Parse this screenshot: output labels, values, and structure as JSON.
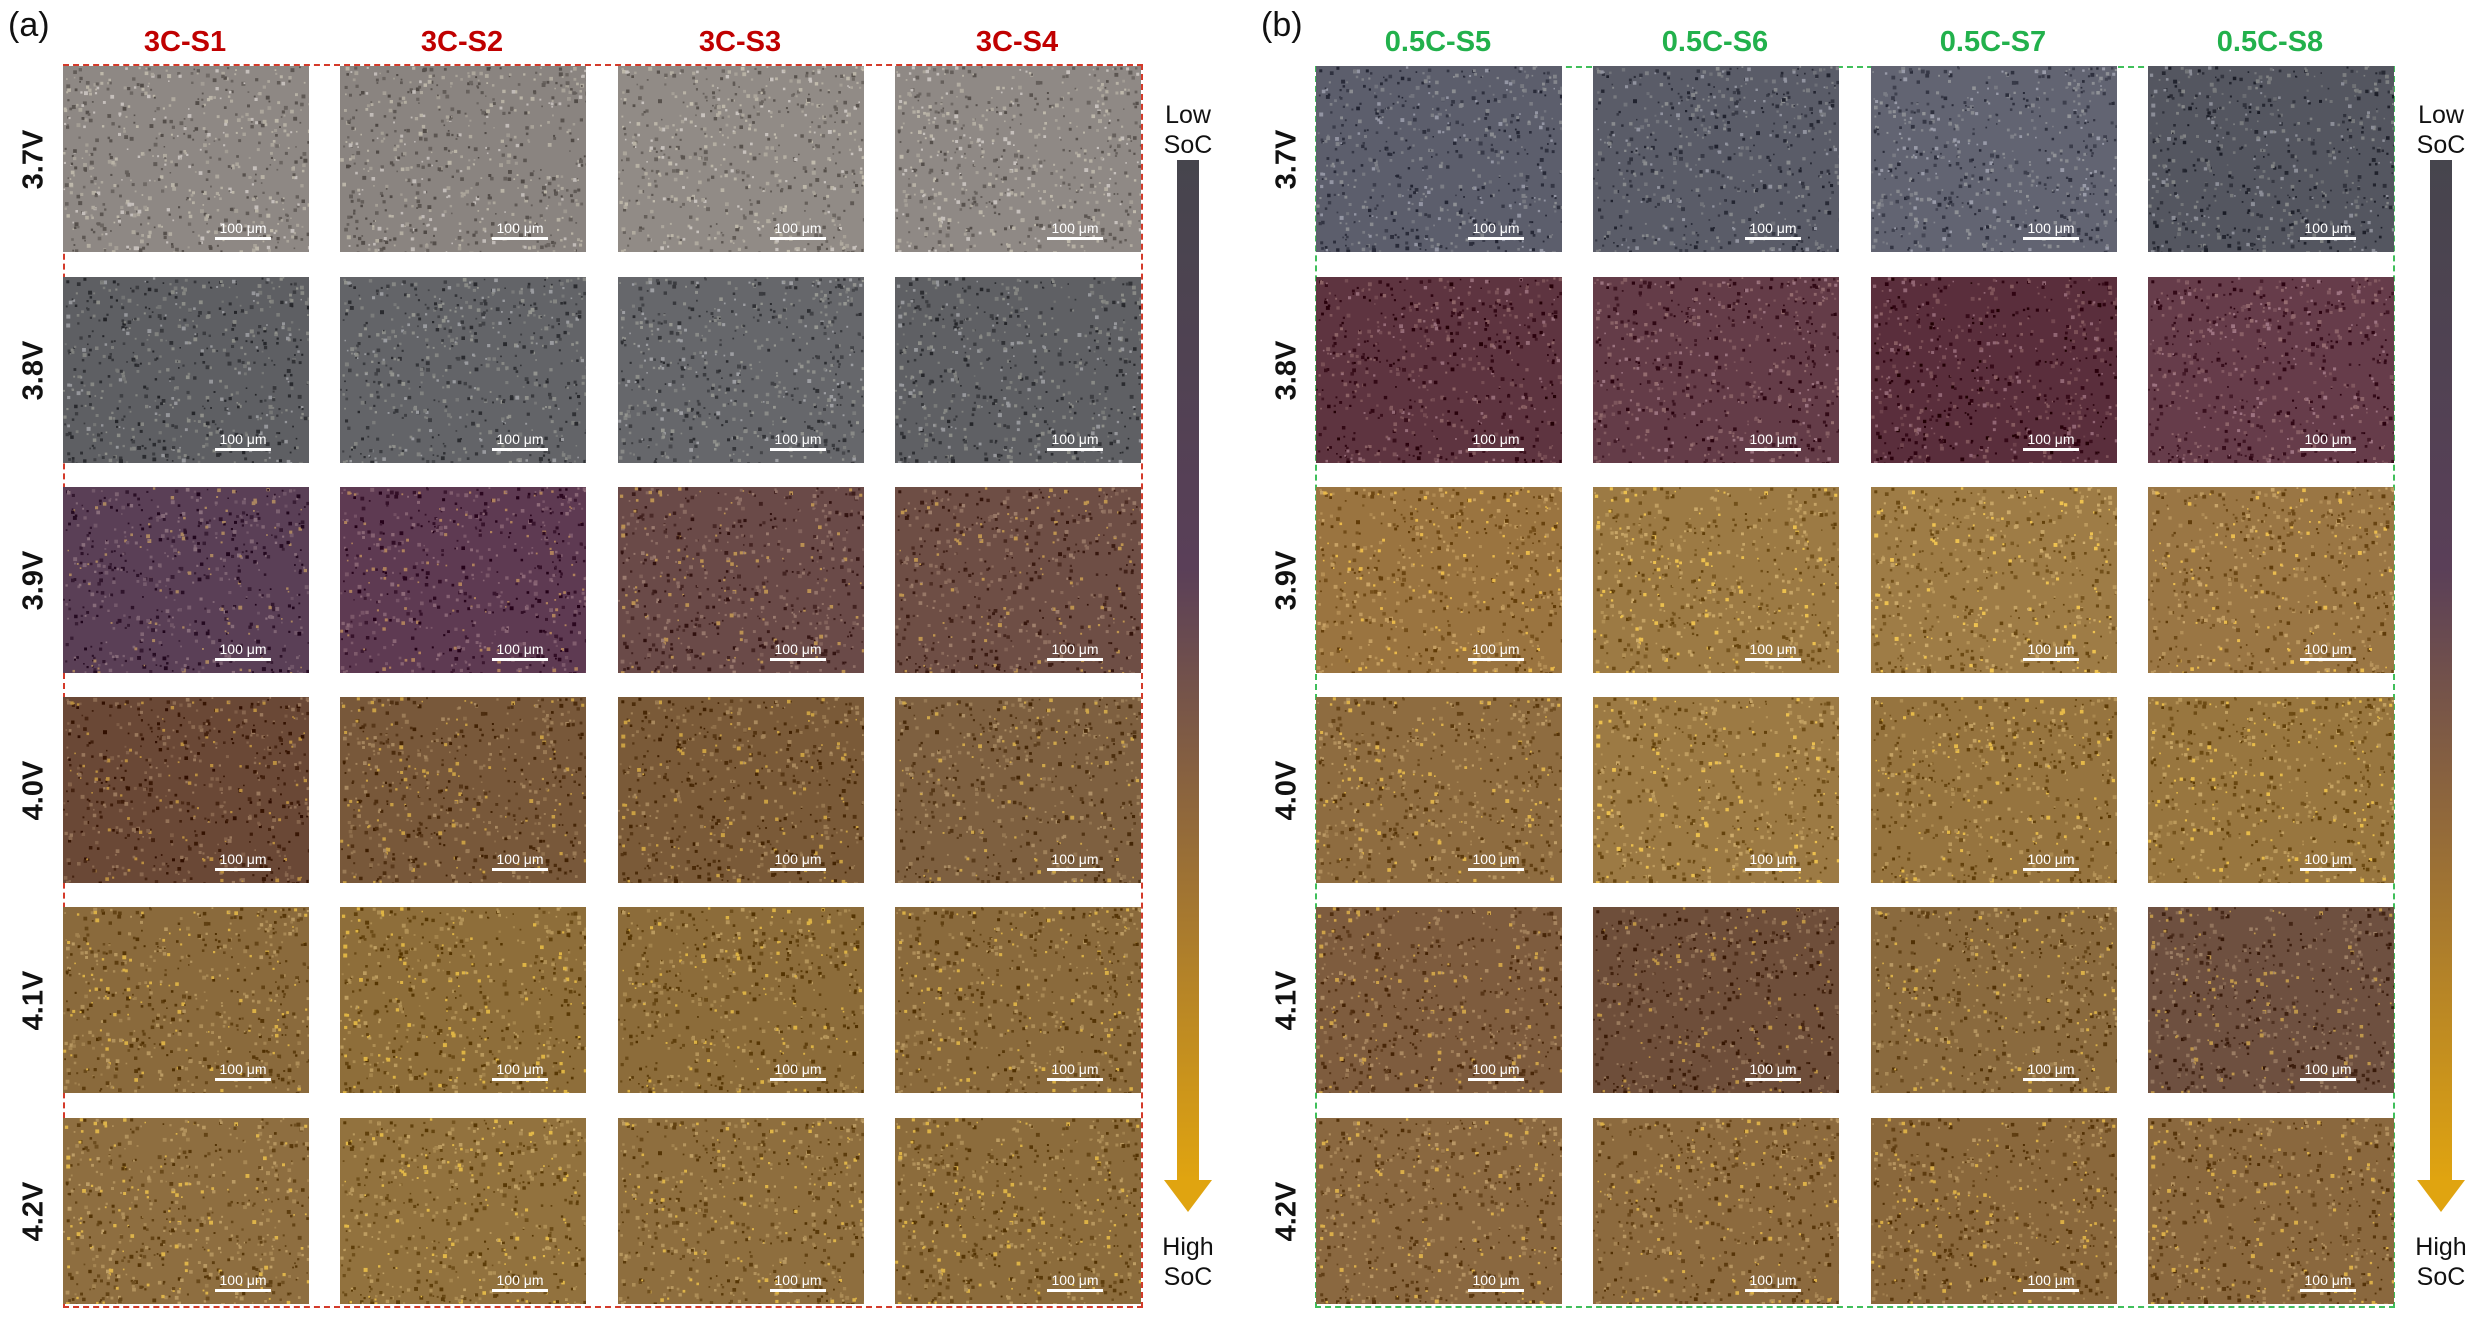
{
  "panels": [
    {
      "id": "a",
      "label": "(a)",
      "header_color": "#c00000",
      "columns": [
        "3C-S1",
        "3C-S2",
        "3C-S3",
        "3C-S4"
      ],
      "rows": [
        "3.7V",
        "3.8V",
        "3.9V",
        "4.0V",
        "4.1V",
        "4.2V"
      ],
      "scale_label": "100 μm",
      "soc_low": [
        "Low",
        "SoC"
      ],
      "soc_high": [
        "High",
        "SoC"
      ]
    },
    {
      "id": "b",
      "label": "(b)",
      "header_color": "#22b14c",
      "columns": [
        "0.5C-S5",
        "0.5C-S6",
        "0.5C-S7",
        "0.5C-S8"
      ],
      "rows": [
        "3.7V",
        "3.8V",
        "3.9V",
        "4.0V",
        "4.1V",
        "4.2V"
      ],
      "scale_label": "100 μm",
      "soc_low": [
        "Low",
        "SoC"
      ],
      "soc_high": [
        "High",
        "SoC"
      ]
    }
  ],
  "tile_colors": {
    "a": [
      [
        "#8e8884",
        "#8a8480",
        "#918b86",
        "#8f8985"
      ],
      [
        "#5e5f63",
        "#636468",
        "#66676b",
        "#5f6064"
      ],
      [
        "#5a3f56",
        "#5e3a52",
        "#6a4a48",
        "#6e4e45"
      ],
      [
        "#6a4836",
        "#78583a",
        "#7a5a38",
        "#7e6040"
      ],
      [
        "#8a6a3c",
        "#8e6e3a",
        "#8c6c3a",
        "#8a6a3c"
      ],
      [
        "#8e6e40",
        "#92723e",
        "#8e6e3e",
        "#8c6c3c"
      ]
    ],
    "b": [
      [
        "#5c5e6c",
        "#5a5c68",
        "#626472",
        "#545660"
      ],
      [
        "#5e3440",
        "#643c48",
        "#5a2e3c",
        "#663c4a"
      ],
      [
        "#9a7440",
        "#9c7a44",
        "#9e7c46",
        "#9a7644"
      ],
      [
        "#8e6c40",
        "#9c7a44",
        "#96743f",
        "#98763f"
      ],
      [
        "#7e5c3e",
        "#6e4e3a",
        "#8a6a3e",
        "#6e5040"
      ],
      [
        "#8a6840",
        "#8c6a3e",
        "#8a683c",
        "#8a683e"
      ]
    ]
  },
  "soc_gradient": [
    "#46454d",
    "#5a3f58",
    "#e0a410"
  ]
}
